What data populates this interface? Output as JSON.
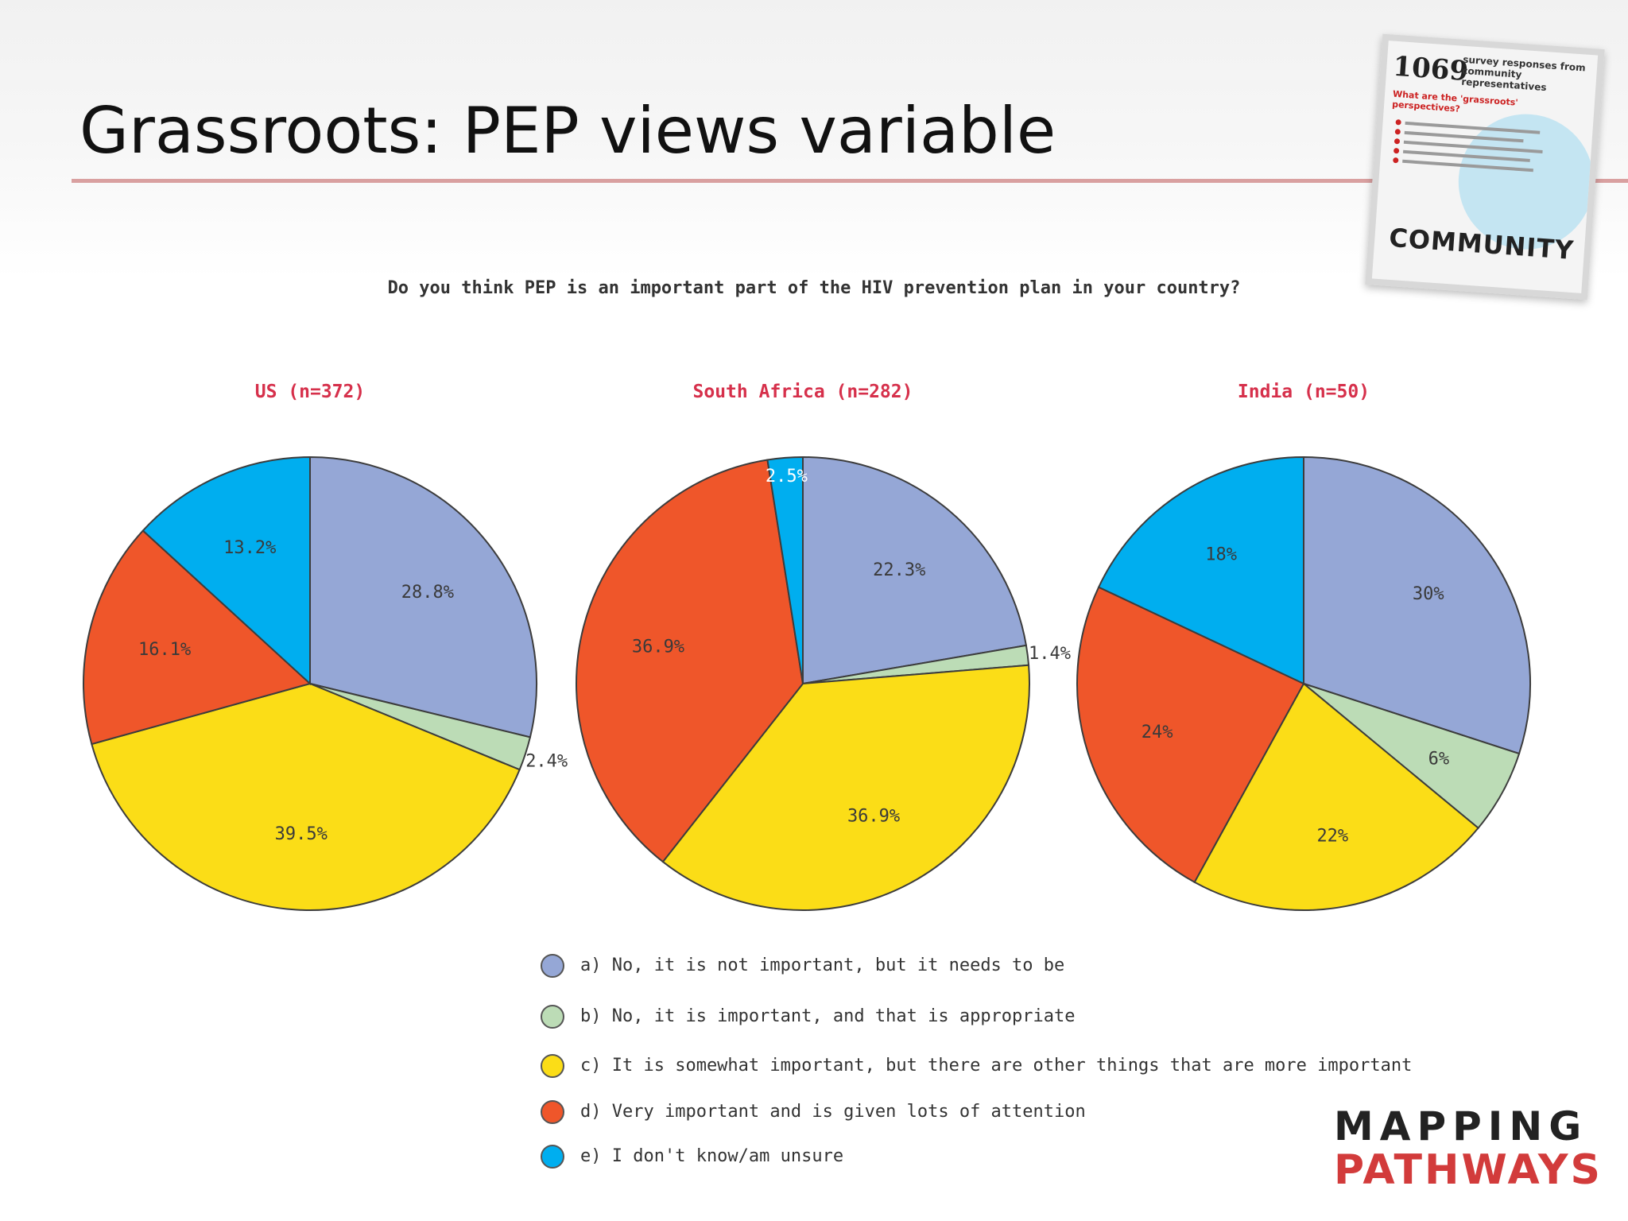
{
  "slide": {
    "title": "Grassroots: PEP views variable"
  },
  "card": {
    "number": "1069",
    "subtitle": "survey responses from community representatives",
    "question": "What are the 'grassroots' perspectives?",
    "footer": "COMMUNITY"
  },
  "branding": {
    "line1": "MAPPING",
    "line2": "PATHWAYS"
  },
  "colors": {
    "a": "#95a7d6",
    "b": "#bcdcb6",
    "c": "#fbdd17",
    "d": "#ef562a",
    "e": "#00aeef",
    "rule": "#d9a0a0",
    "chart_title": "#d6304b",
    "brand_red": "#d23b3b"
  },
  "chart_data": {
    "type": "pie",
    "title": "Do you think PEP is an important part of the HIV prevention plan in your country?",
    "legend": {
      "placement": "bottom-center",
      "entries": [
        {
          "key": "a",
          "label": "a) No, it is not important, but it needs to be"
        },
        {
          "key": "b",
          "label": "b) No, it is important, and that is appropriate"
        },
        {
          "key": "c",
          "label": "c) It is somewhat important, but there are other things that are more important"
        },
        {
          "key": "d",
          "label": "d) Very important and is given lots of attention"
        },
        {
          "key": "e",
          "label": "e) I don't know/am unsure"
        }
      ]
    },
    "charts": [
      {
        "title": "US (n=372)",
        "slices": [
          {
            "key": "a",
            "value": 28.8,
            "label": "28.8%"
          },
          {
            "key": "b",
            "value": 2.4,
            "label": "2.4%"
          },
          {
            "key": "c",
            "value": 39.5,
            "label": "39.5%"
          },
          {
            "key": "d",
            "value": 16.1,
            "label": "16.1%"
          },
          {
            "key": "e",
            "value": 13.2,
            "label": "13.2%"
          }
        ]
      },
      {
        "title": "South Africa (n=282)",
        "slices": [
          {
            "key": "a",
            "value": 22.3,
            "label": "22.3%"
          },
          {
            "key": "b",
            "value": 1.4,
            "label": "1.4%"
          },
          {
            "key": "c",
            "value": 36.9,
            "label": "36.9%"
          },
          {
            "key": "d",
            "value": 36.9,
            "label": "36.9%"
          },
          {
            "key": "e",
            "value": 2.5,
            "label": "2.5%"
          }
        ]
      },
      {
        "title": "India (n=50)",
        "slices": [
          {
            "key": "a",
            "value": 30,
            "label": "30%"
          },
          {
            "key": "b",
            "value": 6,
            "label": "6%"
          },
          {
            "key": "c",
            "value": 22,
            "label": "22%"
          },
          {
            "key": "d",
            "value": 24,
            "label": "24%"
          },
          {
            "key": "e",
            "value": 18,
            "label": "18%"
          }
        ]
      }
    ]
  }
}
